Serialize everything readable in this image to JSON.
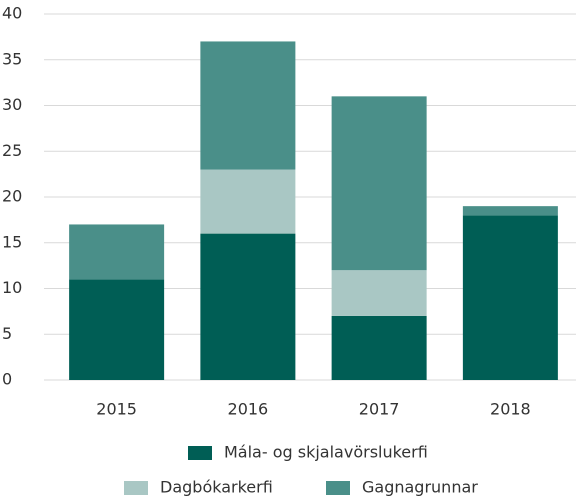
{
  "chart_data": {
    "type": "stacked_bar",
    "categories": [
      "2015",
      "2016",
      "2017",
      "2018"
    ],
    "series": [
      {
        "name": "Mála- og skjalavörslukerfi",
        "color": "#005e55",
        "values": [
          11,
          16,
          7,
          18
        ]
      },
      {
        "name": "Dagbókarkerfi",
        "color": "#a9c7c4",
        "values": [
          0,
          7,
          5,
          0
        ]
      },
      {
        "name": "Gagnagrunnar",
        "color": "#4a8f89",
        "values": [
          6,
          14,
          19,
          1
        ]
      }
    ],
    "ylim": [
      0,
      40
    ],
    "yticks": [
      0,
      5,
      10,
      15,
      20,
      25,
      30,
      35,
      40
    ],
    "grid": true,
    "legend": "bottom"
  }
}
